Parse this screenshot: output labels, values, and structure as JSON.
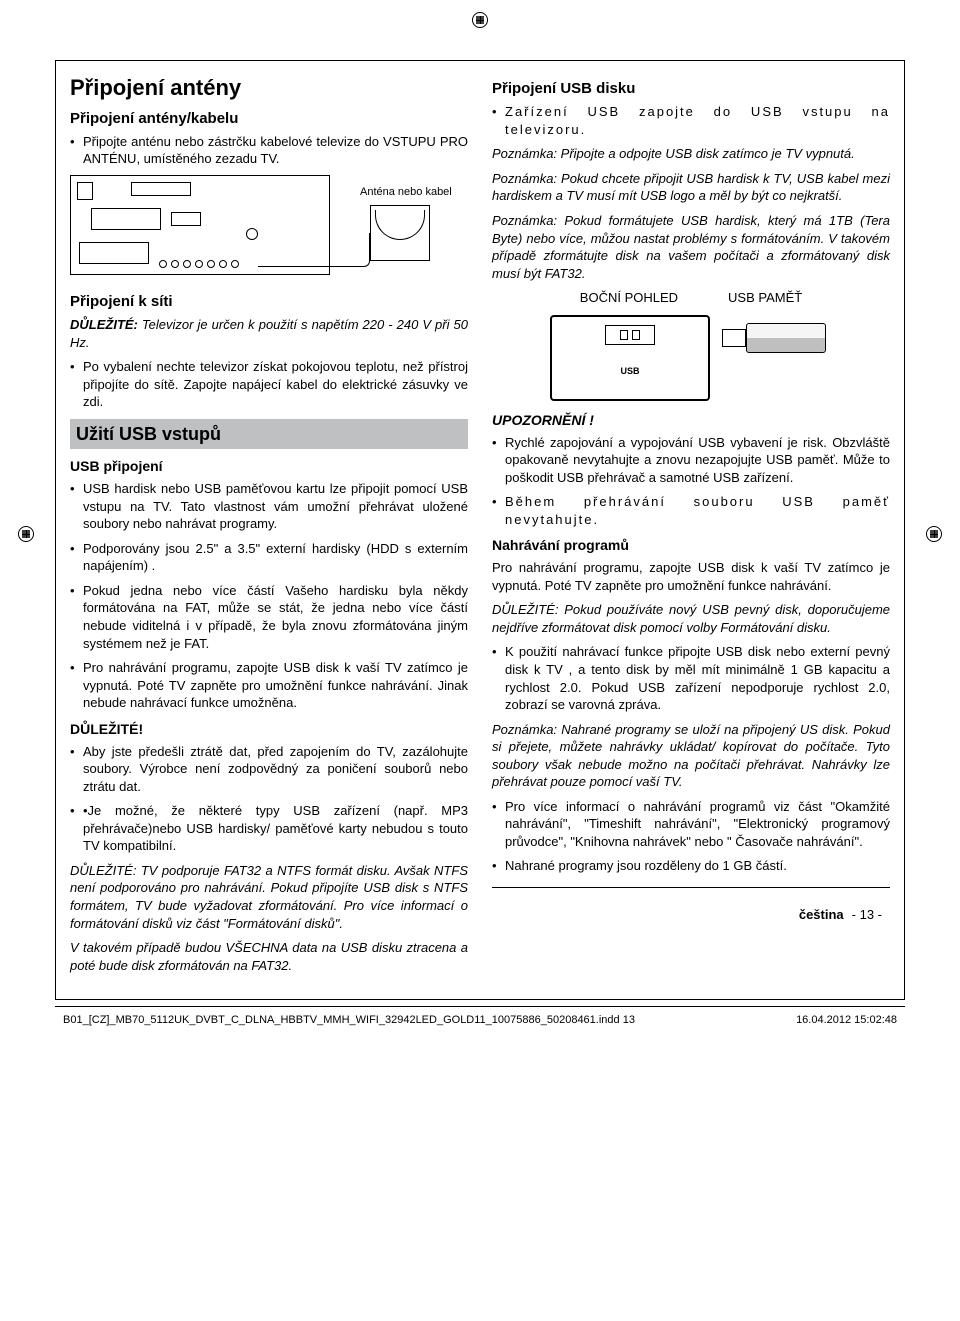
{
  "left": {
    "h1": "Připojení antény",
    "h2a": "Připojení antény/kabelu",
    "b1": "Připojte anténu nebo zástrčku kabelové televize do VSTUPU PRO ANTÉNU, umístěného zezadu TV.",
    "ant_label": "Anténa nebo kabel",
    "h2b": "Připojení k síti",
    "imp1": "DŮLEŽITÉ: Televizor je určen k použití s napětím 220 - 240 V při 50 Hz.",
    "b2": "Po vybalení nechte televizor získat pokojovou teplotu, než přístroj připojíte do sítě. Zapojte napájecí kabel do elektrické zásuvky ve zdi.",
    "banner": "Užití USB vstupů",
    "h3a": "USB připojení",
    "l1": "USB hardisk nebo USB paměťovou kartu lze připojit pomocí USB vstupu na TV. Tato vlastnost vám umožní přehrávat uložené soubory nebo nahrávat programy.",
    "l2": "Podporovány jsou 2.5\" a 3.5\" externí hardisky (HDD s externím napájením) .",
    "l3": "Pokud jedna nebo více částí Vašeho hardisku byla někdy formátována na FAT, může se stát, že jedna nebo více částí nebude viditelná i v případě, že byla znovu zformátována jiným systémem než je FAT.",
    "l4": "Pro nahrávání programu, zapojte USB disk k vaší TV zatímco je vypnutá. Poté TV zapněte pro umožnění funkce nahrávání. Jinak nebude nahrávací funkce umožněna.",
    "h3b": "DŮLEŽITÉ!",
    "l5": "Aby jste předešli ztrátě dat, před zapojením do TV, zazálohujte soubory. Výrobce není zodpovědný za poničení souborů nebo ztrátu dat.",
    "l6": "•Je možné, že některé typy USB zařízení (např. MP3 přehrávače)nebo USB hardisky/ paměťové karty nebudou s touto TV kompatibilní.",
    "imp2": "DŮLEŽITÉ: TV podporuje FAT32 a NTFS formát disku. Avšak NTFS není podporováno pro nahrávání. Pokud připojíte USB disk s NTFS formátem, TV bude vyžadovat zformátování. Pro více informací o formátování disků viz část \"Formátování disků\".",
    "imp3": "V takovém případě budou VŠECHNA data na USB disku ztracena a poté bude disk zformátován na FAT32."
  },
  "right": {
    "h2a": "Připojení USB disku",
    "b1": "Zařízení USB zapojte do USB vstupu na televizoru.",
    "n1": "Poznámka: Připojte a odpojte USB disk zatímco je TV vypnutá.",
    "n2": "Poznámka: Pokud chcete připojit USB hardisk k TV, USB kabel mezi hardiskem a TV musí mít USB logo a měl by být co nejkratší.",
    "n3": "Poznámka: Pokud formátujete USB hardisk, který má 1TB (Tera Byte) nebo více, můžou nastat problémy s formátováním. V takovém případě zformátujte disk na vašem počítači a zformátovaný disk musí být FAT32.",
    "side_label": "BOČNÍ POHLED",
    "usb_label": "USB PAMĚŤ",
    "usb_text": "USB",
    "h3a": "UPOZORNĚNÍ !",
    "l1": "Rychlé zapojování a vypojování USB vybavení je risk. Obzvláště opakovaně nevytahujte a znovu nezapojujte USB paměť. Může to poškodit USB přehrávač a samotné USB zařízení.",
    "l2": "Během přehrávání souboru USB paměť nevytahujte.",
    "h3b": "Nahrávání programů",
    "p1": "Pro nahrávání programu, zapojte USB disk k vaší TV zatímco je vypnutá. Poté TV zapněte pro umožnění funkce nahrávání.",
    "imp1": "DŮLEŽITÉ: Pokud používáte nový USB pevný disk, doporučujeme nejdříve zformátovat disk pomocí volby Formátování disku.",
    "l3": "K použití nahrávací funkce připojte USB disk nebo externí pevný disk k TV , a tento disk by měl mít minimálně 1 GB kapacitu a rychlost 2.0. Pokud USB zařízení nepodporuje rychlost 2.0, zobrazí se varovná zpráva.",
    "n4": "Poznámka: Nahrané programy se uloží na připojený US disk. Pokud si přejete, můžete nahrávky ukládat/ kopírovat do počítače. Tyto soubory však nebude možno na počítači přehrávat. Nahrávky lze přehrávat pouze pomocí vaší TV.",
    "l4": "Pro více informací o nahrávání programů viz část \"Okamžité nahrávání\", \"Timeshift nahrávání\", \"Elektronický programový průvodce\", \"Knihovna nahrávek\" nebo \" Časovače nahrávání\".",
    "l5": "Nahrané programy jsou rozděleny do 1 GB částí."
  },
  "footer": {
    "lang": "čeština",
    "page": "- 13 -",
    "file": "B01_[CZ]_MB70_5112UK_DVBT_C_DLNA_HBBTV_MMH_WIFI_32942LED_GOLD11_10075886_50208461.indd   13",
    "date": "16.04.2012   15:02:48"
  }
}
